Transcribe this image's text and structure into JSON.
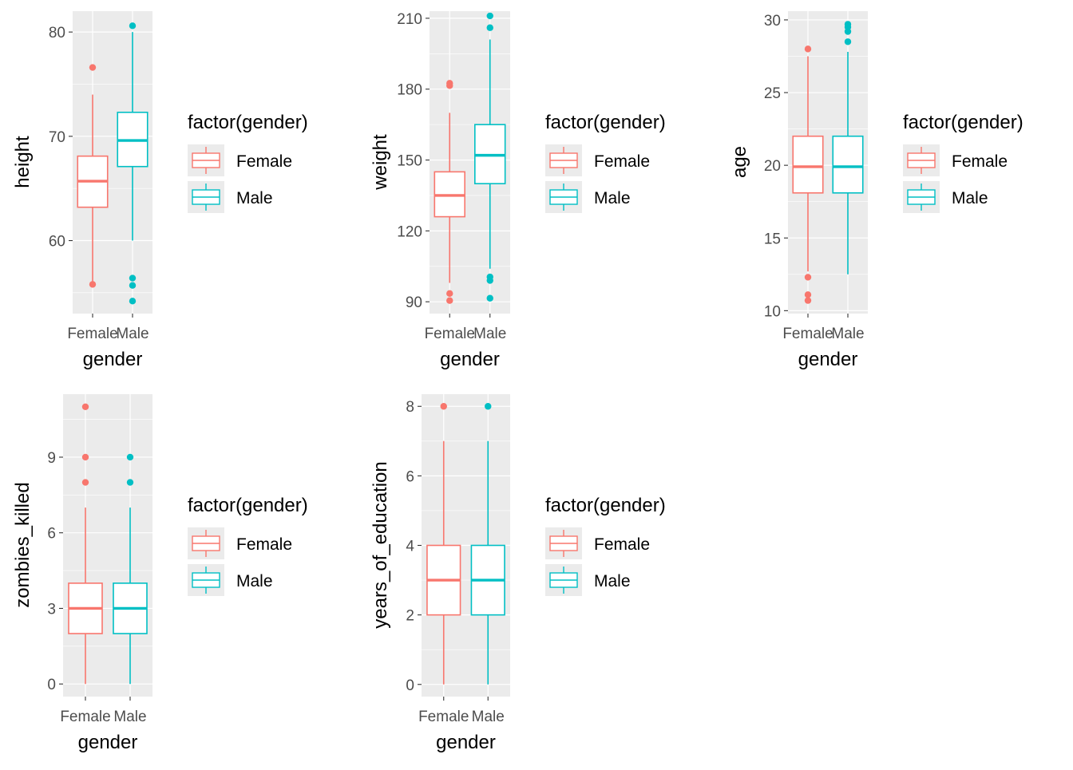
{
  "colors": {
    "female": "#F8766D",
    "male": "#00BFC4",
    "panel_bg": "#EBEBEB",
    "grid": "#FFFFFF",
    "tick_text": "#4D4D4D",
    "axis_text": "#000000"
  },
  "legend": {
    "title": "factor(gender)",
    "items": [
      {
        "label": "Female",
        "color_key": "female"
      },
      {
        "label": "Male",
        "color_key": "male"
      }
    ]
  },
  "chart_data": [
    {
      "type": "boxplot",
      "xlabel": "gender",
      "ylabel": "height",
      "categories": [
        "Female",
        "Male"
      ],
      "ylim": [
        53,
        82
      ],
      "yticks": [
        60,
        70,
        80
      ],
      "boxes": [
        {
          "name": "Female",
          "lower_whisker": 56,
          "q1": 63.2,
          "median": 65.7,
          "q3": 68.1,
          "upper_whisker": 74,
          "outliers": [
            55.8,
            76.6
          ]
        },
        {
          "name": "Male",
          "lower_whisker": 60,
          "q1": 67.1,
          "median": 69.6,
          "q3": 72.3,
          "upper_whisker": 80,
          "outliers": [
            54.2,
            55.7,
            56.4,
            80.6
          ]
        }
      ]
    },
    {
      "type": "boxplot",
      "xlabel": "gender",
      "ylabel": "weight",
      "categories": [
        "Female",
        "Male"
      ],
      "ylim": [
        85,
        213
      ],
      "yticks": [
        90,
        120,
        150,
        180,
        210
      ],
      "boxes": [
        {
          "name": "Female",
          "lower_whisker": 98,
          "q1": 126,
          "median": 135,
          "q3": 145,
          "upper_whisker": 170,
          "outliers": [
            90.5,
            93.5,
            181.5,
            182.5
          ]
        },
        {
          "name": "Male",
          "lower_whisker": 104,
          "q1": 140,
          "median": 152,
          "q3": 165,
          "upper_whisker": 201,
          "outliers": [
            91.5,
            99,
            100.5,
            206,
            211
          ]
        }
      ]
    },
    {
      "type": "boxplot",
      "xlabel": "gender",
      "ylabel": "age",
      "categories": [
        "Female",
        "Male"
      ],
      "ylim": [
        9.8,
        30.6
      ],
      "yticks": [
        10,
        15,
        20,
        25,
        30
      ],
      "boxes": [
        {
          "name": "Female",
          "lower_whisker": 12.7,
          "q1": 18.1,
          "median": 19.9,
          "q3": 22,
          "upper_whisker": 27.5,
          "outliers": [
            10.7,
            11.1,
            12.3,
            28
          ]
        },
        {
          "name": "Male",
          "lower_whisker": 12.5,
          "q1": 18.1,
          "median": 19.9,
          "q3": 22,
          "upper_whisker": 27.8,
          "outliers": [
            28.5,
            29.2,
            29.5,
            29.7
          ]
        }
      ]
    },
    {
      "type": "boxplot",
      "xlabel": "gender",
      "ylabel": "zombies_killed",
      "categories": [
        "Female",
        "Male"
      ],
      "ylim": [
        -0.5,
        11.5
      ],
      "yticks": [
        0,
        3,
        6,
        9
      ],
      "boxes": [
        {
          "name": "Female",
          "lower_whisker": 0,
          "q1": 2,
          "median": 3,
          "q3": 4,
          "upper_whisker": 7,
          "outliers": [
            8,
            9,
            11
          ]
        },
        {
          "name": "Male",
          "lower_whisker": 0,
          "q1": 2,
          "median": 3,
          "q3": 4,
          "upper_whisker": 7,
          "outliers": [
            8,
            9
          ]
        }
      ]
    },
    {
      "type": "boxplot",
      "xlabel": "gender",
      "ylabel": "years_of_education",
      "categories": [
        "Female",
        "Male"
      ],
      "ylim": [
        -0.35,
        8.35
      ],
      "yticks": [
        0,
        2,
        4,
        6,
        8
      ],
      "boxes": [
        {
          "name": "Female",
          "lower_whisker": 0,
          "q1": 2,
          "median": 3,
          "q3": 4,
          "upper_whisker": 7,
          "outliers": [
            8
          ]
        },
        {
          "name": "Male",
          "lower_whisker": 0,
          "q1": 2,
          "median": 3,
          "q3": 4,
          "upper_whisker": 7,
          "outliers": [
            8
          ]
        }
      ]
    }
  ]
}
